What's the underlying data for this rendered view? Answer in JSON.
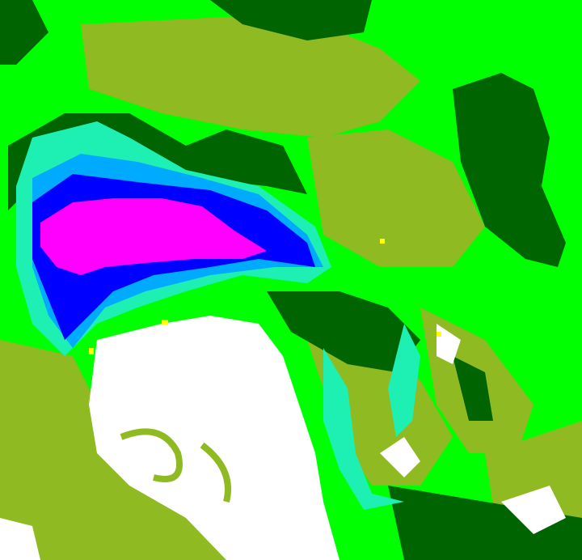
{
  "image": {
    "kind": "false-color enhanced satellite cloud imagery",
    "palette": {
      "clear_green": "#00ff00",
      "olive": "#8fba22",
      "dark_green": "#006400",
      "aqua": "#1ef0b4",
      "light_blue": "#00aaff",
      "blue": "#0000ff",
      "magenta": "#ff00ff",
      "white": "#ffffff",
      "yellow": "#ffff00"
    }
  }
}
